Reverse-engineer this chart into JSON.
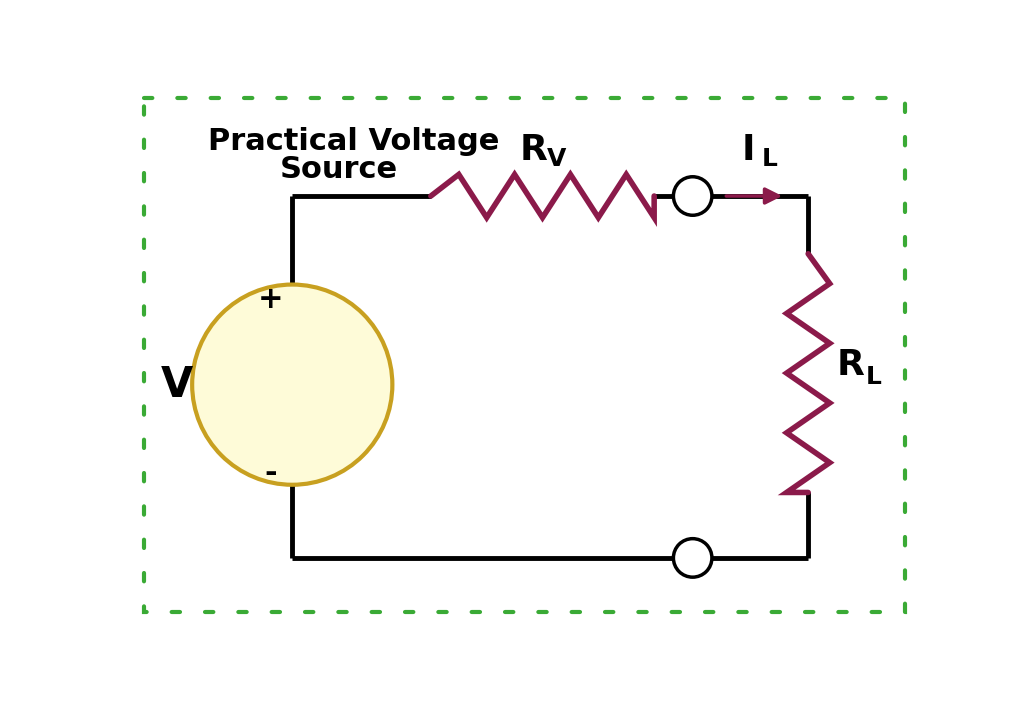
{
  "title_line1": "Practical Voltage",
  "title_line2": "Source",
  "background_color": "#ffffff",
  "border_color": "#3aaa35",
  "wire_color": "#000000",
  "resistor_color": "#8B1A4A",
  "circle_color": "#000000",
  "voltage_source_fill": "#FEFBD8",
  "voltage_source_edge": "#C8A020",
  "arrow_color": "#8B1A4A",
  "label_V": "V",
  "label_plus": "+",
  "label_minus": "-",
  "label_Rv": "R",
  "label_Rv_sub": "V",
  "label_IL": "I",
  "label_IL_sub": "L",
  "label_RL": "R",
  "label_RL_sub": "L",
  "wire_lw": 3.5,
  "resistor_lw": 3.0,
  "border_lw": 3.0,
  "title_fontsize": 22,
  "label_fontsize": 26,
  "sub_fontsize": 18,
  "pm_fontsize": 22
}
